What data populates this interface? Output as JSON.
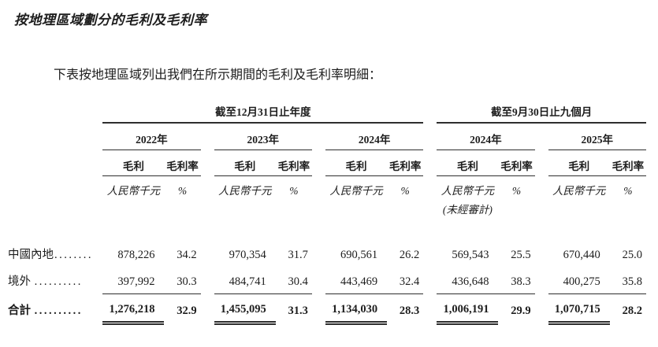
{
  "page": {
    "title": "按地理區域劃分的毛利及毛利率",
    "intro": "下表按地理區域列出我們在所示期間的毛利及毛利率明細："
  },
  "table": {
    "group_headers": [
      "截至12月31日止年度",
      "截至9月30日止九個月"
    ],
    "years": [
      "2022年",
      "2023年",
      "2024年",
      "2024年",
      "2025年"
    ],
    "col_headers": {
      "profit": "毛利",
      "margin": "毛利率"
    },
    "units": {
      "amount": "人民幣千元",
      "percent": "%"
    },
    "unaudited_note": "(未經審計)",
    "rows": [
      {
        "label": "中國內地",
        "leader": "........",
        "values": [
          "878,226",
          "34.2",
          "970,354",
          "31.7",
          "690,561",
          "26.2",
          "569,543",
          "25.5",
          "670,440",
          "25.0"
        ]
      },
      {
        "label": "境外",
        "leader": "..........",
        "values": [
          "397,992",
          "30.3",
          "484,741",
          "30.4",
          "443,469",
          "32.4",
          "436,648",
          "38.3",
          "400,275",
          "35.8"
        ]
      }
    ],
    "total": {
      "label": "合計",
      "leader": "..........",
      "values": [
        "1,276,218",
        "32.9",
        "1,455,095",
        "31.3",
        "1,134,030",
        "28.3",
        "1,006,191",
        "29.9",
        "1,070,715",
        "28.2"
      ]
    }
  },
  "colors": {
    "text": "#1d1d1d",
    "rule": "#2e2e2e"
  }
}
